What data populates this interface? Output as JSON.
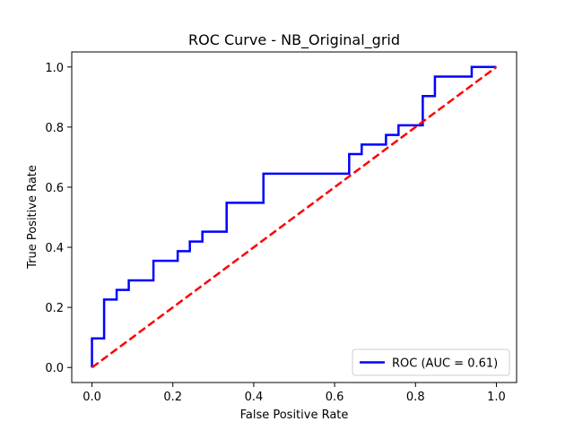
{
  "chart_data": {
    "type": "line",
    "title": "ROC Curve - NB_Original_grid",
    "xlabel": "False Positive Rate",
    "ylabel": "True Positive Rate",
    "xlim": [
      -0.05,
      1.05
    ],
    "ylim": [
      -0.05,
      1.05
    ],
    "xticks": [
      0.0,
      0.2,
      0.4,
      0.6,
      0.8,
      1.0
    ],
    "yticks": [
      0.0,
      0.2,
      0.4,
      0.6,
      0.8,
      1.0
    ],
    "xtick_labels": [
      "0.0",
      "0.2",
      "0.4",
      "0.6",
      "0.8",
      "1.0"
    ],
    "ytick_labels": [
      "0.0",
      "0.2",
      "0.4",
      "0.6",
      "0.8",
      "1.0"
    ],
    "grid": false,
    "legend_position": "lower right",
    "series": [
      {
        "name": "ROC (AUC = 0.61)",
        "color": "#0000ff",
        "style": "solid",
        "x": [
          0.0,
          0.0,
          0.03,
          0.03,
          0.061,
          0.061,
          0.091,
          0.091,
          0.152,
          0.152,
          0.212,
          0.212,
          0.242,
          0.242,
          0.273,
          0.273,
          0.333,
          0.333,
          0.424,
          0.424,
          0.636,
          0.636,
          0.667,
          0.667,
          0.727,
          0.727,
          0.758,
          0.758,
          0.818,
          0.818,
          0.848,
          0.848,
          0.939,
          0.939,
          1.0
        ],
        "y": [
          0.0,
          0.097,
          0.097,
          0.226,
          0.226,
          0.258,
          0.258,
          0.29,
          0.29,
          0.355,
          0.355,
          0.387,
          0.387,
          0.419,
          0.419,
          0.452,
          0.452,
          0.548,
          0.548,
          0.645,
          0.645,
          0.71,
          0.71,
          0.742,
          0.742,
          0.774,
          0.774,
          0.806,
          0.806,
          0.903,
          0.903,
          0.968,
          0.968,
          1.0,
          1.0
        ]
      },
      {
        "color": "#ff0000",
        "style": "dashed",
        "x": [
          0.0,
          1.0
        ],
        "y": [
          0.0,
          1.0
        ]
      }
    ]
  }
}
